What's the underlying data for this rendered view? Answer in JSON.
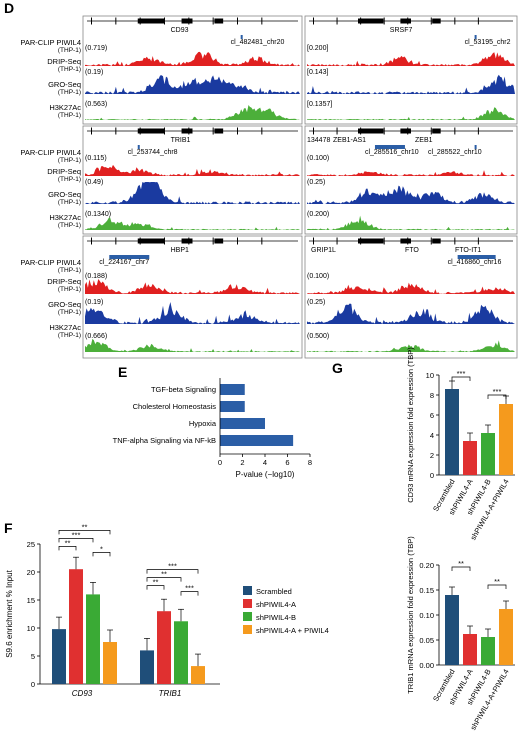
{
  "panels": {
    "d": "D",
    "e": "E",
    "f": "F",
    "g": "G"
  },
  "track_labels": {
    "par_clip": "PAR-CLIP PIWIL4",
    "drip": "DRIP-Seq",
    "gro": "GRO-Seq",
    "h3k27": "H3K27Ac",
    "cell": "(THP-1)"
  },
  "loci": [
    {
      "gene": "CD93",
      "cluster": "cl_482481_chr20",
      "scales": [
        "(0.719)",
        "(0.19)",
        "(0.563)"
      ]
    },
    {
      "gene": "SRSF7",
      "cluster": "cl_53195_chr2",
      "scales": [
        "[0.200]",
        "[0.143]",
        "[0.1357]"
      ]
    },
    {
      "gene": "TRIB1",
      "cluster": "cl_253744_chr8",
      "scales": [
        "(0.115)",
        "(0.49)",
        "(0.1340)"
      ]
    },
    {
      "gene_a": "ZEB1-AS1",
      "gene_b": "ZEB1",
      "coord": "134478",
      "cluster": "cl_285516_chr10",
      "cluster2": "cl_285522_chr10",
      "scales": [
        "(0.100)",
        "(0.25)",
        "(0.200)"
      ]
    },
    {
      "gene": "HBP1",
      "cluster": "cl_224167_chr7",
      "scales": [
        "(0.188)",
        "(0.19)",
        "(0.666)"
      ]
    },
    {
      "gene_a": "GRIP1L",
      "gene_b": "FTO",
      "gene_c": "FTO-IT1",
      "cluster": "cl_416860_chr16",
      "scales": [
        "(0.100)",
        "(0.25)",
        "(0.500)"
      ]
    }
  ],
  "chart_data": [
    {
      "id": "E",
      "type": "bar",
      "orientation": "horizontal",
      "categories": [
        "TGF-beta Signaling",
        "Cholesterol Homeostasis",
        "Hypoxia",
        "TNF-alpha Signaling via NF-kB"
      ],
      "values": [
        2.2,
        2.2,
        4.0,
        6.5
      ],
      "xlabel": "P-value (−log10)",
      "xticks": [
        "0",
        "2",
        "4",
        "6",
        "8"
      ],
      "xlim": [
        0,
        8
      ],
      "color": "#2b5ea6"
    },
    {
      "id": "F",
      "type": "bar",
      "categories": [
        "CD93",
        "TRIB1"
      ],
      "series": [
        {
          "name": "Scrambled",
          "values": [
            9.8,
            6.0
          ],
          "color": "#1f4e79"
        },
        {
          "name": "shPIWIL4-A",
          "values": [
            20.5,
            13.0
          ],
          "color": "#e03030"
        },
        {
          "name": "shPIWIL4-B",
          "values": [
            16.0,
            11.2
          ],
          "color": "#3aaa35"
        },
        {
          "name": "shPIWIL4-A + PIWIL4",
          "values": [
            7.5,
            3.2
          ],
          "color": "#f59a1d"
        }
      ],
      "ylabel": "S9.6 enrichment % Input",
      "ylim": [
        0,
        25
      ],
      "yticks": [
        "0",
        "5",
        "10",
        "15",
        "20",
        "25"
      ],
      "sig": [
        "**",
        "***",
        "**",
        "*",
        "**",
        "**",
        "***",
        "***"
      ]
    },
    {
      "id": "G1",
      "type": "bar",
      "categories": [
        "Scrambled",
        "shPIWIL4-A",
        "shPIWIL4-B",
        "shPIWIL4-A+PIWIL4"
      ],
      "values": [
        8.6,
        3.4,
        4.2,
        7.1
      ],
      "colors": [
        "#1f4e79",
        "#e03030",
        "#3aaa35",
        "#f59a1d"
      ],
      "ylabel": "CD93 mRNA expression fold expression (TBP)",
      "ylim": [
        0,
        10
      ],
      "yticks": [
        "0",
        "2",
        "4",
        "6",
        "8",
        "10"
      ],
      "sig": [
        "***",
        "***"
      ]
    },
    {
      "id": "G2",
      "type": "bar",
      "categories": [
        "Scrambled",
        "shPIWIL4-A",
        "shPIWIL4-B",
        "shPIWIL4-A+PIWIL4"
      ],
      "values": [
        0.14,
        0.062,
        0.056,
        0.112
      ],
      "colors": [
        "#1f4e79",
        "#e03030",
        "#3aaa35",
        "#f59a1d"
      ],
      "ylabel": "TRIB1 mRNA expression fold expression (TBP)",
      "ylim": [
        0,
        0.2
      ],
      "yticks": [
        "0.00",
        "0.05",
        "0.10",
        "0.15",
        "0.20"
      ],
      "sig": [
        "**",
        "**"
      ]
    }
  ]
}
